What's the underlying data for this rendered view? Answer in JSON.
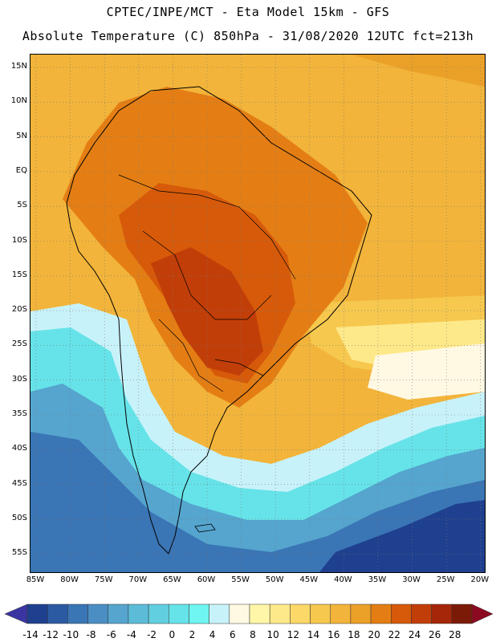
{
  "header": {
    "line1": "CPTEC/INPE/MCT -  Eta Model 15km - GFS",
    "line2": "Absolute Temperature (C) 850hPa - 31/08/2020 12UTC fct=213h"
  },
  "map": {
    "lat_labels": [
      "15N",
      "10N",
      "5N",
      "EQ",
      "5S",
      "10S",
      "15S",
      "20S",
      "25S",
      "30S",
      "35S",
      "40S",
      "45S",
      "50S",
      "55S"
    ],
    "lon_labels": [
      "85W",
      "80W",
      "75W",
      "70W",
      "65W",
      "60W",
      "55W",
      "50W",
      "45W",
      "40W",
      "35W",
      "30W",
      "25W",
      "20W"
    ]
  },
  "colorbar": {
    "labels": [
      "-14",
      "-12",
      "-10",
      "-8",
      "-6",
      "-4",
      "-2",
      "0",
      "2",
      "4",
      "6",
      "8",
      "10",
      "12",
      "14",
      "16",
      "18",
      "20",
      "22",
      "24",
      "26",
      "28"
    ],
    "colors": [
      "#1f3f8f",
      "#2b5aa3",
      "#3a75b5",
      "#4a8ec4",
      "#55a5cf",
      "#5cbcd8",
      "#61cfe0",
      "#66e3e8",
      "#6ff5f2",
      "#c8f2fa",
      "#fff9e3",
      "#fff6a8",
      "#fee98a",
      "#fbd868",
      "#f6c84e",
      "#f2b43a",
      "#eba028",
      "#e47e14",
      "#d65a0a",
      "#c23e08",
      "#a52608",
      "#7c1a08"
    ],
    "low_arrow": "#3b35a2",
    "high_arrow": "#8b0a22"
  }
}
